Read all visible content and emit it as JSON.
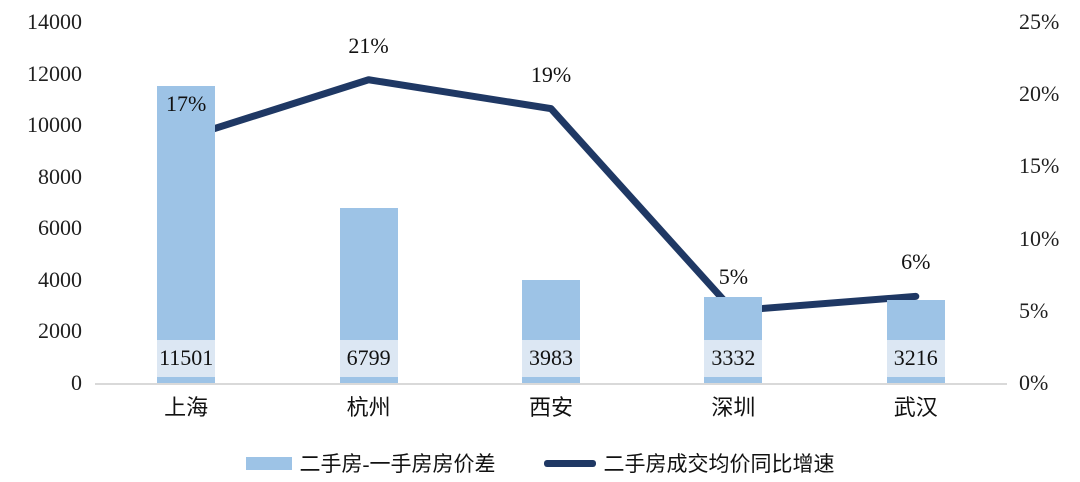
{
  "chart_data": {
    "type": "bar+line combo",
    "categories": [
      "上海",
      "杭州",
      "西安",
      "深圳",
      "武汉"
    ],
    "series": [
      {
        "name": "二手房-一手房房价差",
        "type": "bar",
        "axis": "left",
        "values": [
          11501,
          6799,
          3983,
          3332,
          3216
        ],
        "labels": [
          "11501",
          "6799",
          "3983",
          "3332",
          "3216"
        ],
        "color": "#9dc3e6",
        "label_band_color": "#dce7f3"
      },
      {
        "name": "二手房成交均价同比增速",
        "type": "line",
        "axis": "right",
        "values": [
          17,
          21,
          19,
          5,
          6
        ],
        "labels": [
          "17%",
          "21%",
          "19%",
          "5%",
          "6%"
        ],
        "color": "#1f3864"
      }
    ],
    "left_axis": {
      "min": 0,
      "max": 14000,
      "ticks": [
        {
          "value": 14000,
          "label": "14000"
        },
        {
          "value": 12000,
          "label": "12000"
        },
        {
          "value": 10000,
          "label": "10000"
        },
        {
          "value": 8000,
          "label": "8000"
        },
        {
          "value": 6000,
          "label": "6000"
        },
        {
          "value": 4000,
          "label": "4000"
        },
        {
          "value": 2000,
          "label": "2000"
        },
        {
          "value": 0,
          "label": "0"
        }
      ]
    },
    "right_axis": {
      "min": 0,
      "max": 25,
      "ticks": [
        {
          "value": 25,
          "label": "25%"
        },
        {
          "value": 20,
          "label": "20%"
        },
        {
          "value": 15,
          "label": "15%"
        },
        {
          "value": 10,
          "label": "10%"
        },
        {
          "value": 5,
          "label": "5%"
        },
        {
          "value": 0,
          "label": "0%"
        }
      ]
    },
    "grid": "off",
    "legend_position": "bottom"
  },
  "legend": {
    "bar_label": "二手房-一手房房价差",
    "line_label": "二手房成交均价同比增速"
  },
  "colors": {
    "bar": "#9dc3e6",
    "bar_label_band": "#dce7f3",
    "line": "#1f3864",
    "axis_line": "#d9d9d9",
    "text": "#111111"
  }
}
